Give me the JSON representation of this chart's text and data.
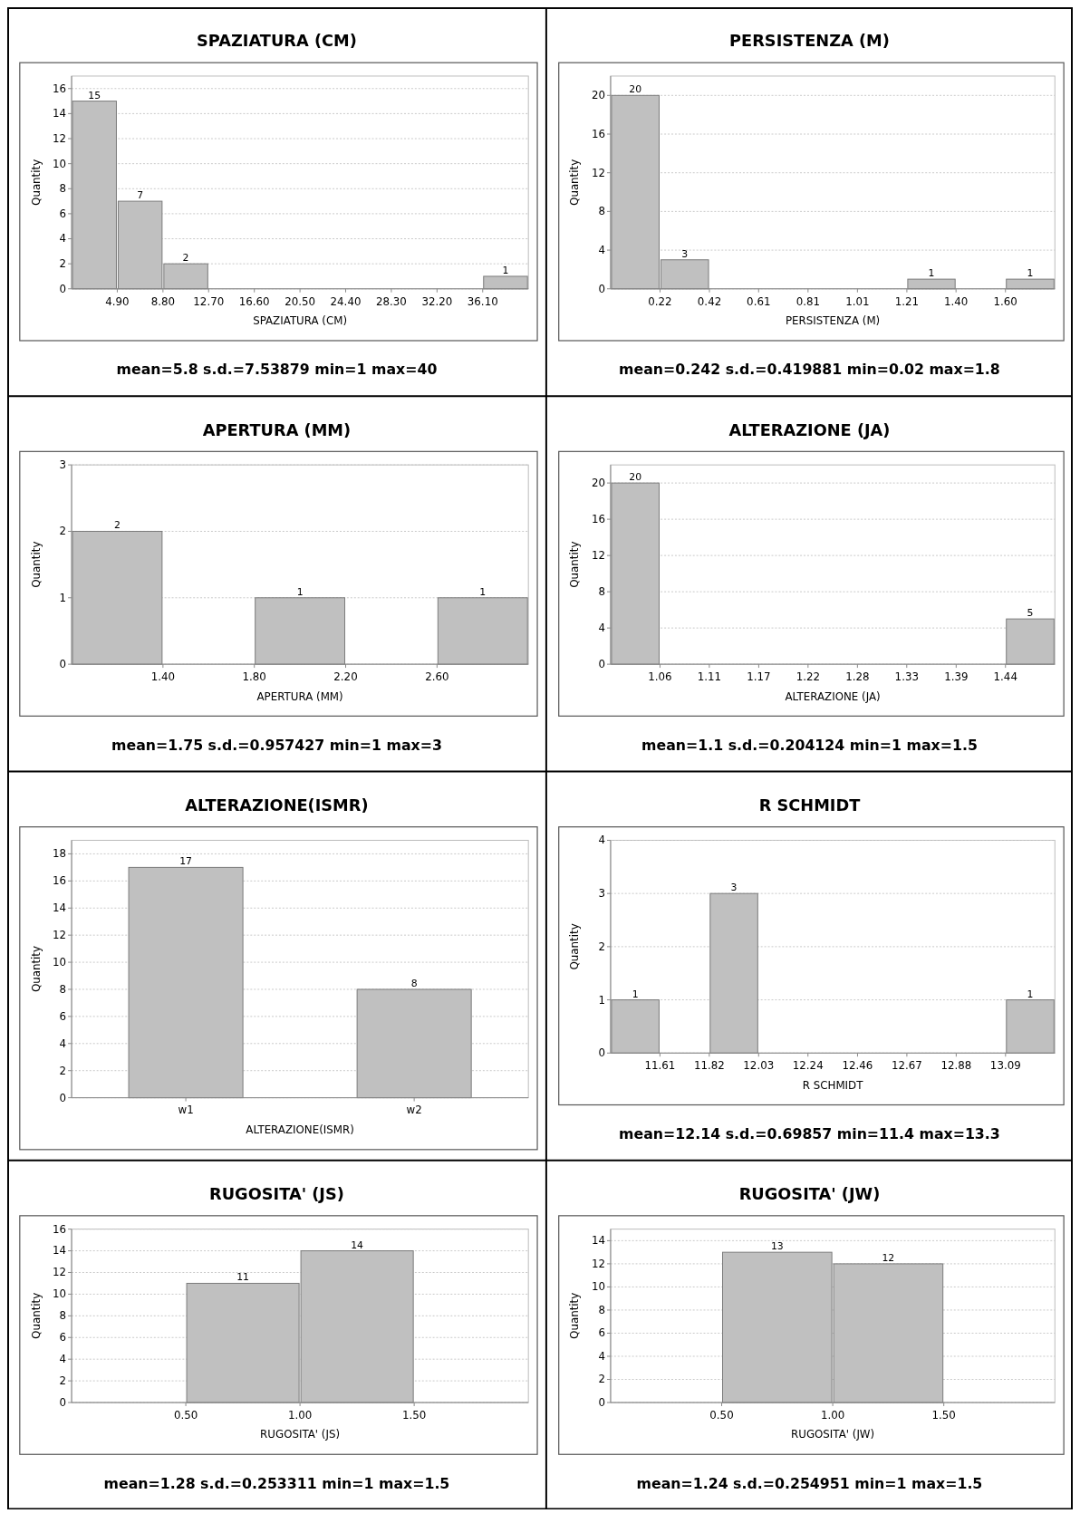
{
  "chart_data": [
    {
      "type": "histogram",
      "title": "SPAZIATURA (CM)",
      "xlabel": "SPAZIATURA (CM)",
      "ylabel": "Quantity",
      "bins": [
        1,
        4.9,
        8.8,
        12.7,
        16.6,
        20.5,
        24.4,
        28.3,
        32.2,
        36.1,
        40
      ],
      "values": [
        15,
        7,
        2,
        0,
        0,
        0,
        0,
        0,
        0,
        1
      ],
      "value_labels": [
        "15",
        "7",
        "2",
        null,
        null,
        null,
        null,
        null,
        null,
        "1"
      ],
      "color": "#c0c0c0",
      "xlim": [
        1,
        40
      ],
      "xticks": [
        {
          "value": 4.9,
          "label": "4.90"
        },
        {
          "value": 8.8,
          "label": "8.80"
        },
        {
          "value": 12.7,
          "label": "12.70"
        },
        {
          "value": 16.6,
          "label": "16.60"
        },
        {
          "value": 20.5,
          "label": "20.50"
        },
        {
          "value": 24.4,
          "label": "24.40"
        },
        {
          "value": 28.3,
          "label": "28.30"
        },
        {
          "value": 32.2,
          "label": "32.20"
        },
        {
          "value": 36.1,
          "label": "36.10"
        }
      ],
      "ylim": [
        0,
        17
      ],
      "yticks": [
        0,
        2,
        4,
        6,
        8,
        10,
        12,
        14,
        16
      ],
      "grid": "y",
      "annotations": [
        "mean=5.8 s.d.=7.53879 min=1 max=40"
      ]
    },
    {
      "type": "histogram",
      "title": "PERSISTENZA (M)",
      "xlabel": "PERSISTENZA (M)",
      "ylabel": "Quantity",
      "bins": [
        0.02,
        0.218,
        0.416,
        0.613,
        0.811,
        1.009,
        1.207,
        1.404,
        1.602,
        1.8
      ],
      "values": [
        20,
        3,
        0,
        0,
        0,
        0,
        1,
        0,
        1
      ],
      "value_labels": [
        "20",
        "3",
        null,
        null,
        null,
        null,
        "1",
        null,
        "1"
      ],
      "color": "#c0c0c0",
      "xlim": [
        0.02,
        1.8
      ],
      "xticks": [
        {
          "value": 0.218,
          "label": "0.22"
        },
        {
          "value": 0.416,
          "label": "0.42"
        },
        {
          "value": 0.613,
          "label": "0.61"
        },
        {
          "value": 0.811,
          "label": "0.81"
        },
        {
          "value": 1.009,
          "label": "1.01"
        },
        {
          "value": 1.207,
          "label": "1.21"
        },
        {
          "value": 1.404,
          "label": "1.40"
        },
        {
          "value": 1.602,
          "label": "1.60"
        }
      ],
      "ylim": [
        0,
        22
      ],
      "yticks": [
        0,
        4,
        8,
        12,
        16,
        20
      ],
      "grid": "y",
      "annotations": [
        "mean=0.242 s.d.=0.419881 min=0.02 max=1.8"
      ]
    },
    {
      "type": "histogram",
      "title": "APERTURA (MM)",
      "xlabel": "APERTURA (MM)",
      "ylabel": "Quantity",
      "bins": [
        1,
        1.4,
        1.8,
        2.2,
        2.6,
        3
      ],
      "values": [
        2,
        0,
        1,
        0,
        1
      ],
      "value_labels": [
        "2",
        null,
        "1",
        null,
        "1"
      ],
      "color": "#c0c0c0",
      "xlim": [
        1,
        3
      ],
      "xticks": [
        {
          "value": 1.4,
          "label": "1.40"
        },
        {
          "value": 1.8,
          "label": "1.80"
        },
        {
          "value": 2.2,
          "label": "2.20"
        },
        {
          "value": 2.6,
          "label": "2.60"
        }
      ],
      "ylim": [
        0,
        3
      ],
      "yticks": [
        0,
        1,
        2,
        3
      ],
      "grid": "y",
      "annotations": [
        "mean=1.75 s.d.=0.957427 min=1 max=3"
      ]
    },
    {
      "type": "histogram",
      "title": "ALTERAZIONE (JA)",
      "xlabel": "ALTERAZIONE (JA)",
      "ylabel": "Quantity",
      "bins": [
        1,
        1.0556,
        1.1111,
        1.1667,
        1.2222,
        1.2778,
        1.3333,
        1.3889,
        1.4444,
        1.5
      ],
      "values": [
        20,
        0,
        0,
        0,
        0,
        0,
        0,
        0,
        5
      ],
      "value_labels": [
        "20",
        null,
        null,
        null,
        null,
        null,
        null,
        null,
        "5"
      ],
      "color": "#c0c0c0",
      "xlim": [
        1,
        1.5
      ],
      "xticks": [
        {
          "value": 1.0556,
          "label": "1.06"
        },
        {
          "value": 1.1111,
          "label": "1.11"
        },
        {
          "value": 1.1667,
          "label": "1.17"
        },
        {
          "value": 1.2222,
          "label": "1.22"
        },
        {
          "value": 1.2778,
          "label": "1.28"
        },
        {
          "value": 1.3333,
          "label": "1.33"
        },
        {
          "value": 1.3889,
          "label": "1.39"
        },
        {
          "value": 1.4444,
          "label": "1.44"
        }
      ],
      "ylim": [
        0,
        22
      ],
      "yticks": [
        0,
        4,
        8,
        12,
        16,
        20
      ],
      "grid": "y",
      "annotations": [
        "mean=1.1 s.d.=0.204124 min=1 max=1.5"
      ]
    },
    {
      "type": "bar",
      "title": "ALTERAZIONE(ISMR)",
      "xlabel": "ALTERAZIONE(ISMR)",
      "ylabel": "Quantity",
      "categories": [
        "w1",
        "w2"
      ],
      "values": [
        17,
        8
      ],
      "color": "#c0c0c0",
      "data_labels": true,
      "ylim": [
        0,
        19
      ],
      "yticks": [
        0,
        2,
        4,
        6,
        8,
        10,
        12,
        14,
        16,
        18
      ],
      "grid": "y"
    },
    {
      "type": "histogram",
      "title": "R SCHMIDT",
      "xlabel": "R SCHMIDT",
      "ylabel": "Quantity",
      "bins": [
        11.4,
        11.611,
        11.822,
        12.033,
        12.244,
        12.456,
        12.667,
        12.878,
        13.089,
        13.3
      ],
      "values": [
        1,
        0,
        3,
        0,
        0,
        0,
        0,
        0,
        1
      ],
      "value_labels": [
        "1",
        null,
        "3",
        null,
        null,
        null,
        null,
        null,
        "1"
      ],
      "color": "#c0c0c0",
      "xlim": [
        11.4,
        13.3
      ],
      "xticks": [
        {
          "value": 11.611,
          "label": "11.61"
        },
        {
          "value": 11.822,
          "label": "11.82"
        },
        {
          "value": 12.033,
          "label": "12.03"
        },
        {
          "value": 12.244,
          "label": "12.24"
        },
        {
          "value": 12.456,
          "label": "12.46"
        },
        {
          "value": 12.667,
          "label": "12.67"
        },
        {
          "value": 12.878,
          "label": "12.88"
        },
        {
          "value": 13.089,
          "label": "13.09"
        }
      ],
      "ylim": [
        0,
        4
      ],
      "yticks": [
        0,
        1,
        2,
        3,
        4
      ],
      "grid": "y",
      "annotations": [
        "mean=12.14 s.d.=0.69857 min=11.4 max=13.3"
      ]
    },
    {
      "type": "histogram",
      "title": "RUGOSITA' (JS)",
      "xlabel": "RUGOSITA' (JS)",
      "ylabel": "Quantity",
      "bins": [
        0.5,
        1,
        1.5
      ],
      "values": [
        11,
        14
      ],
      "value_labels": [
        "11",
        "14"
      ],
      "color": "#c0c0c0",
      "xlim": [
        0,
        2
      ],
      "xticks": [
        {
          "value": 0.5,
          "label": "0.50"
        },
        {
          "value": 1,
          "label": "1.00"
        },
        {
          "value": 1.5,
          "label": "1.50"
        }
      ],
      "ylim": [
        0,
        16
      ],
      "yticks": [
        0,
        2,
        4,
        6,
        8,
        10,
        12,
        14,
        16
      ],
      "grid": "y",
      "annotations": [
        "mean=1.28 s.d.=0.253311 min=1 max=1.5"
      ]
    },
    {
      "type": "histogram",
      "title": "RUGOSITA' (JW)",
      "xlabel": "RUGOSITA' (JW)",
      "ylabel": "Quantity",
      "bins": [
        0.5,
        1,
        1.5
      ],
      "values": [
        13,
        12
      ],
      "value_labels": [
        "13",
        "12"
      ],
      "color": "#c0c0c0",
      "xlim": [
        0,
        2
      ],
      "xticks": [
        {
          "value": 0.5,
          "label": "0.50"
        },
        {
          "value": 1,
          "label": "1.00"
        },
        {
          "value": 1.5,
          "label": "1.50"
        }
      ],
      "ylim": [
        0,
        15
      ],
      "yticks": [
        0,
        2,
        4,
        6,
        8,
        10,
        12,
        14
      ],
      "grid": "y",
      "annotations": [
        "mean=1.24 s.d.=0.254951 min=1 max=1.5"
      ]
    }
  ]
}
